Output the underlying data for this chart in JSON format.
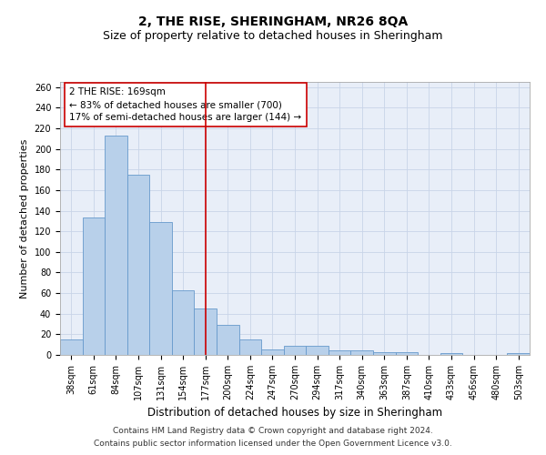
{
  "title": "2, THE RISE, SHERINGHAM, NR26 8QA",
  "subtitle": "Size of property relative to detached houses in Sheringham",
  "xlabel": "Distribution of detached houses by size in Sheringham",
  "ylabel": "Number of detached properties",
  "categories": [
    "38sqm",
    "61sqm",
    "84sqm",
    "107sqm",
    "131sqm",
    "154sqm",
    "177sqm",
    "200sqm",
    "224sqm",
    "247sqm",
    "270sqm",
    "294sqm",
    "317sqm",
    "340sqm",
    "363sqm",
    "387sqm",
    "410sqm",
    "433sqm",
    "456sqm",
    "480sqm",
    "503sqm"
  ],
  "values": [
    15,
    133,
    213,
    175,
    129,
    63,
    45,
    29,
    15,
    5,
    9,
    9,
    4,
    4,
    3,
    3,
    0,
    2,
    0,
    0,
    2
  ],
  "bar_color": "#b8d0ea",
  "bar_edge_color": "#6699cc",
  "grid_color": "#c8d4e8",
  "bg_color": "#e8eef8",
  "vline_x": 6.0,
  "vline_color": "#cc0000",
  "annotation_text": "2 THE RISE: 169sqm\n← 83% of detached houses are smaller (700)\n17% of semi-detached houses are larger (144) →",
  "annotation_box_color": "#ffffff",
  "annotation_box_edge": "#cc0000",
  "ylim": [
    0,
    265
  ],
  "yticks": [
    0,
    20,
    40,
    60,
    80,
    100,
    120,
    140,
    160,
    180,
    200,
    220,
    240,
    260
  ],
  "footer1": "Contains HM Land Registry data © Crown copyright and database right 2024.",
  "footer2": "Contains public sector information licensed under the Open Government Licence v3.0.",
  "title_fontsize": 10,
  "subtitle_fontsize": 9,
  "xlabel_fontsize": 8.5,
  "ylabel_fontsize": 8,
  "tick_fontsize": 7,
  "annotation_fontsize": 7.5,
  "footer_fontsize": 6.5
}
